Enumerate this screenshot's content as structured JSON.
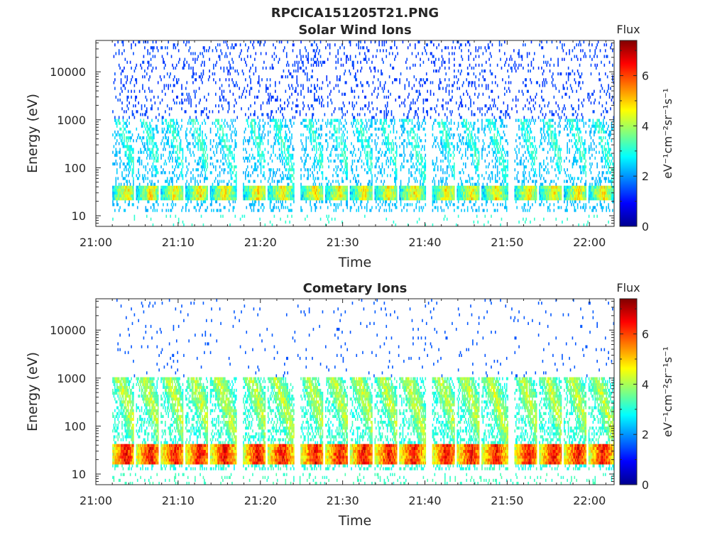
{
  "figure": {
    "filename": "RPCICA151205T21.PNG"
  },
  "chart_data": [
    {
      "type": "heatmap",
      "title": "Solar Wind Ions",
      "xlabel": "Time",
      "ylabel": "Energy (eV)",
      "y_scale": "log",
      "ylim": [
        6,
        45000
      ],
      "xlim": [
        "21:00",
        "22:03"
      ],
      "x_ticks": [
        "21:00",
        "21:10",
        "21:20",
        "21:30",
        "21:40",
        "21:50",
        "22:00"
      ],
      "y_ticks": [
        "10",
        "100",
        "1000",
        "10000"
      ],
      "colorbar": {
        "title": "Flux",
        "label": "eV⁻¹cm⁻²sr⁻¹s⁻¹",
        "range": [
          0,
          7.4
        ],
        "ticks": [
          "0",
          "2",
          "4",
          "6"
        ],
        "colormap": "jet"
      },
      "data_start": "21:02",
      "data_end": "22:03",
      "burst_peaks": [
        "21:03",
        "21:06",
        "21:09",
        "21:12",
        "21:15",
        "21:19",
        "21:22",
        "21:26",
        "21:29",
        "21:32",
        "21:35",
        "21:38",
        "21:42",
        "21:45",
        "21:48",
        "21:52",
        "21:55",
        "21:58",
        "22:01"
      ],
      "peak_energy_band_eV": [
        20,
        40
      ],
      "peak_level_at_band": 4.8,
      "high_energy_background_level": 1.2,
      "grid": false
    },
    {
      "type": "heatmap",
      "title": "Cometary Ions",
      "xlabel": "Time",
      "ylabel": "Energy (eV)",
      "y_scale": "log",
      "ylim": [
        6,
        45000
      ],
      "xlim": [
        "21:00",
        "22:03"
      ],
      "x_ticks": [
        "21:00",
        "21:10",
        "21:20",
        "21:30",
        "21:40",
        "21:50",
        "22:00"
      ],
      "y_ticks": [
        "10",
        "100",
        "1000",
        "10000"
      ],
      "colorbar": {
        "title": "Flux",
        "label": "eV⁻¹cm⁻²sr⁻¹s⁻¹",
        "range": [
          0,
          7.4
        ],
        "ticks": [
          "0",
          "2",
          "4",
          "6"
        ],
        "colormap": "jet"
      },
      "data_start": "21:02",
      "data_end": "22:03",
      "burst_peaks": [
        "21:03",
        "21:06",
        "21:09",
        "21:12",
        "21:15",
        "21:19",
        "21:22",
        "21:26",
        "21:29",
        "21:32",
        "21:35",
        "21:38",
        "21:42",
        "21:45",
        "21:48",
        "21:52",
        "21:55",
        "21:58",
        "22:01"
      ],
      "peak_energy_band_eV": [
        15,
        40
      ],
      "peak_level_at_band": 6.5,
      "high_energy_background_level": 1.5,
      "grid": false
    }
  ]
}
